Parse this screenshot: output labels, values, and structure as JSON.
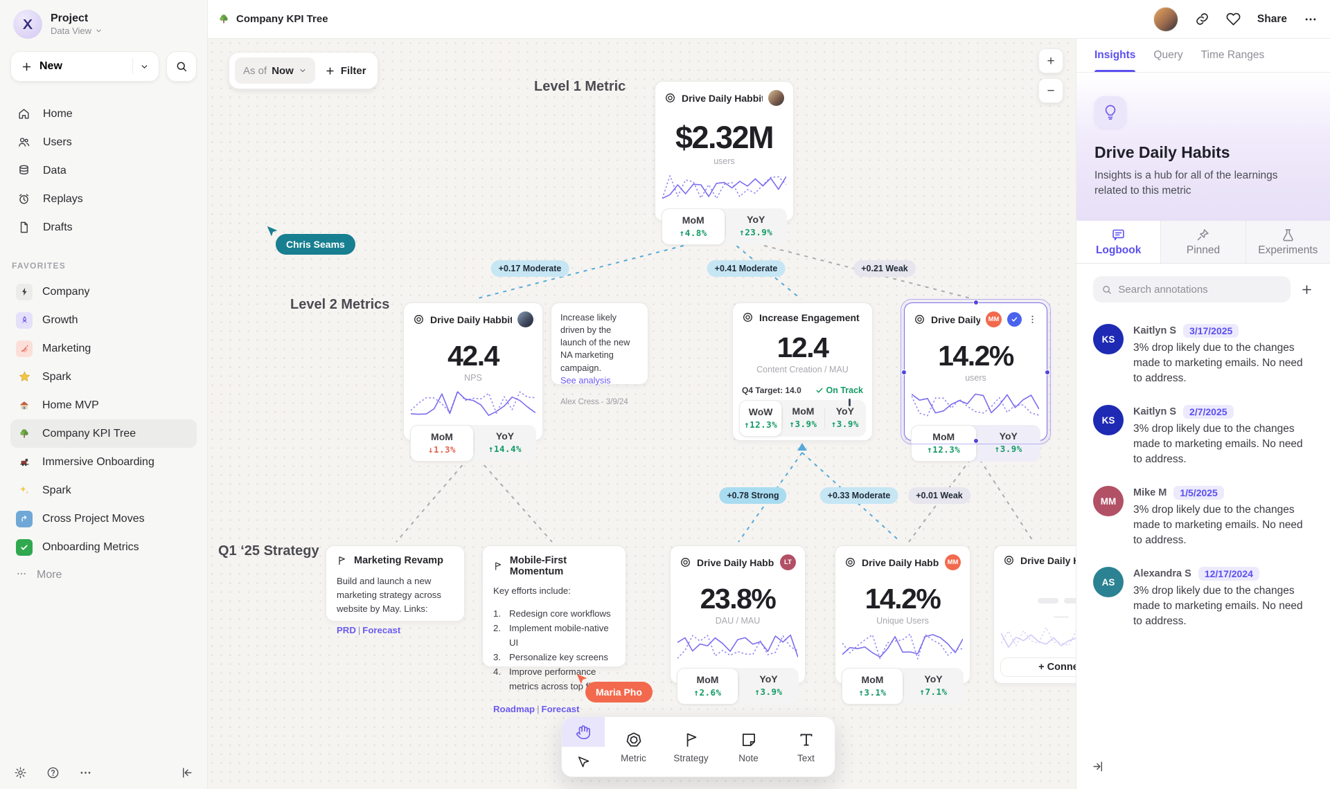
{
  "sidebar": {
    "project": {
      "name": "Project",
      "view": "Data View"
    },
    "new_label": "New",
    "nav": [
      {
        "label": "Home"
      },
      {
        "label": "Users"
      },
      {
        "label": "Data"
      },
      {
        "label": "Replays"
      },
      {
        "label": "Drafts"
      }
    ],
    "favorites_label": "FAVORITES",
    "favorites": [
      {
        "label": "Company"
      },
      {
        "label": "Growth"
      },
      {
        "label": "Marketing"
      },
      {
        "label": "Spark"
      },
      {
        "label": "Home MVP"
      },
      {
        "label": "Company KPI Tree"
      },
      {
        "label": "Immersive Onboarding"
      },
      {
        "label": "Spark"
      },
      {
        "label": "Cross Project Moves"
      },
      {
        "label": "Onboarding Metrics"
      }
    ],
    "more_label": "More"
  },
  "topbar": {
    "title": "Company KPI Tree",
    "share_label": "Share"
  },
  "canvas": {
    "asof_label": "As of",
    "asof_value": "Now",
    "filter_label": "Filter",
    "zoom_in": "+",
    "zoom_out": "−",
    "sections": {
      "level1": "Level 1 Metric",
      "level2": "Level 2 Metrics",
      "q1": "Q1 ‘25 Strategy"
    },
    "edges": [
      {
        "label": "+0.17 Moderate",
        "tone": "moderate"
      },
      {
        "label": "+0.41 Moderate",
        "tone": "moderate"
      },
      {
        "label": "+0.21 Weak",
        "tone": "weak"
      },
      {
        "label": "+0.78 Strong",
        "tone": "strong"
      },
      {
        "label": "+0.33 Moderate",
        "tone": "moderate"
      },
      {
        "label": "+0.01 Weak",
        "tone": "weak"
      }
    ],
    "cursors": [
      {
        "name": "Chris Seams",
        "color": "#177f90"
      },
      {
        "name": "Maria Pho",
        "color": "#f2694d"
      }
    ],
    "cards": {
      "l1": {
        "title": "Drive Daily Habbits",
        "value": "$2.32M",
        "unit": "users",
        "stats": [
          {
            "label": "MoM",
            "value": "↑4.8%"
          },
          {
            "label": "YoY",
            "value": "↑23.9%"
          }
        ]
      },
      "nps": {
        "title": "Drive Daily Habbits",
        "value": "42.4",
        "unit": "NPS",
        "stats": [
          {
            "label": "MoM",
            "value": "↓1.3%"
          },
          {
            "label": "YoY",
            "value": "↑14.4%"
          }
        ]
      },
      "note": {
        "text": "Increase likely driven by the launch of the new NA marketing campaign.",
        "link": "See analysis",
        "byline": "Alex Cress - 3/9/24"
      },
      "engagement": {
        "title": "Increase Engagement",
        "value": "12.4",
        "unit": "Content Creation / MAU",
        "target": "Q4 Target: 14.0",
        "status": "On Track",
        "stats": [
          {
            "label": "WoW",
            "value": "↑12.3%"
          },
          {
            "label": "MoM",
            "value": "↑3.9%"
          },
          {
            "label": "YoY",
            "value": "↑3.9%"
          }
        ]
      },
      "selected": {
        "title": "Drive Daily Habb..",
        "badge": "MM",
        "value": "14.2%",
        "unit": "users",
        "stats": [
          {
            "label": "MoM",
            "value": "↑12.3%"
          },
          {
            "label": "YoY",
            "value": "↑3.9%"
          }
        ]
      },
      "strategy1": {
        "title": "Marketing Revamp",
        "body": "Build and launch a new marketing strategy across website by May. Links:",
        "links": [
          "PRD",
          "Forecast"
        ]
      },
      "strategy2": {
        "title": "Mobile-First Momentum",
        "intro": "Key efforts include:",
        "items": [
          "Redesign core workflows",
          "Implement mobile-native UI",
          "Personalize key screens",
          "Improve performance metrics across top flows"
        ],
        "links": [
          "Roadmap",
          "Forecast"
        ]
      },
      "dau": {
        "title": "Drive Daily Habbits",
        "badge": "LT",
        "value": "23.8%",
        "unit": "DAU / MAU",
        "stats": [
          {
            "label": "MoM",
            "value": "↑2.6%"
          },
          {
            "label": "YoY",
            "value": "↑3.9%"
          }
        ]
      },
      "unique": {
        "title": "Drive Daily Habbits",
        "badge": "MM",
        "value": "14.2%",
        "unit": "Unique Users",
        "stats": [
          {
            "label": "MoM",
            "value": "↑3.1%"
          },
          {
            "label": "YoY",
            "value": "↑7.1%"
          }
        ]
      },
      "partial": {
        "title": "Drive Daily Hab",
        "connect": "+  Connec"
      }
    },
    "toolbar": {
      "tools": [
        {
          "label": "Metric"
        },
        {
          "label": "Strategy"
        },
        {
          "label": "Note"
        },
        {
          "label": "Text"
        }
      ]
    }
  },
  "panel": {
    "tabs": [
      {
        "label": "Insights"
      },
      {
        "label": "Query"
      },
      {
        "label": "Time Ranges"
      }
    ],
    "hero": {
      "title": "Drive Daily Habits",
      "desc": "Insights is a hub for all of the learnings related to this metric"
    },
    "subtabs": [
      {
        "label": "Logbook"
      },
      {
        "label": "Pinned"
      },
      {
        "label": "Experiments"
      }
    ],
    "search_placeholder": "Search annotations",
    "annotations": [
      {
        "initials": "KS",
        "name": "Kaitlyn S",
        "date": "3/17/2025",
        "text": "3% drop likely due to the changes made to marketing emails. No need to address.",
        "color": "#1e2ab3"
      },
      {
        "initials": "KS",
        "name": "Kaitlyn S",
        "date": "2/7/2025",
        "text": "3% drop likely due to the changes made to marketing emails. No need to address.",
        "color": "#1e2ab3"
      },
      {
        "initials": "MM",
        "name": "Mike M",
        "date": "1/5/2025",
        "text": "3% drop likely due to the changes made to marketing emails. No need to address.",
        "color": "#b25066"
      },
      {
        "initials": "AS",
        "name": "Alexandra S",
        "date": "12/17/2024",
        "text": "3% drop likely due to the changes made to marketing emails. No need to address.",
        "color": "#2b8292"
      }
    ]
  }
}
